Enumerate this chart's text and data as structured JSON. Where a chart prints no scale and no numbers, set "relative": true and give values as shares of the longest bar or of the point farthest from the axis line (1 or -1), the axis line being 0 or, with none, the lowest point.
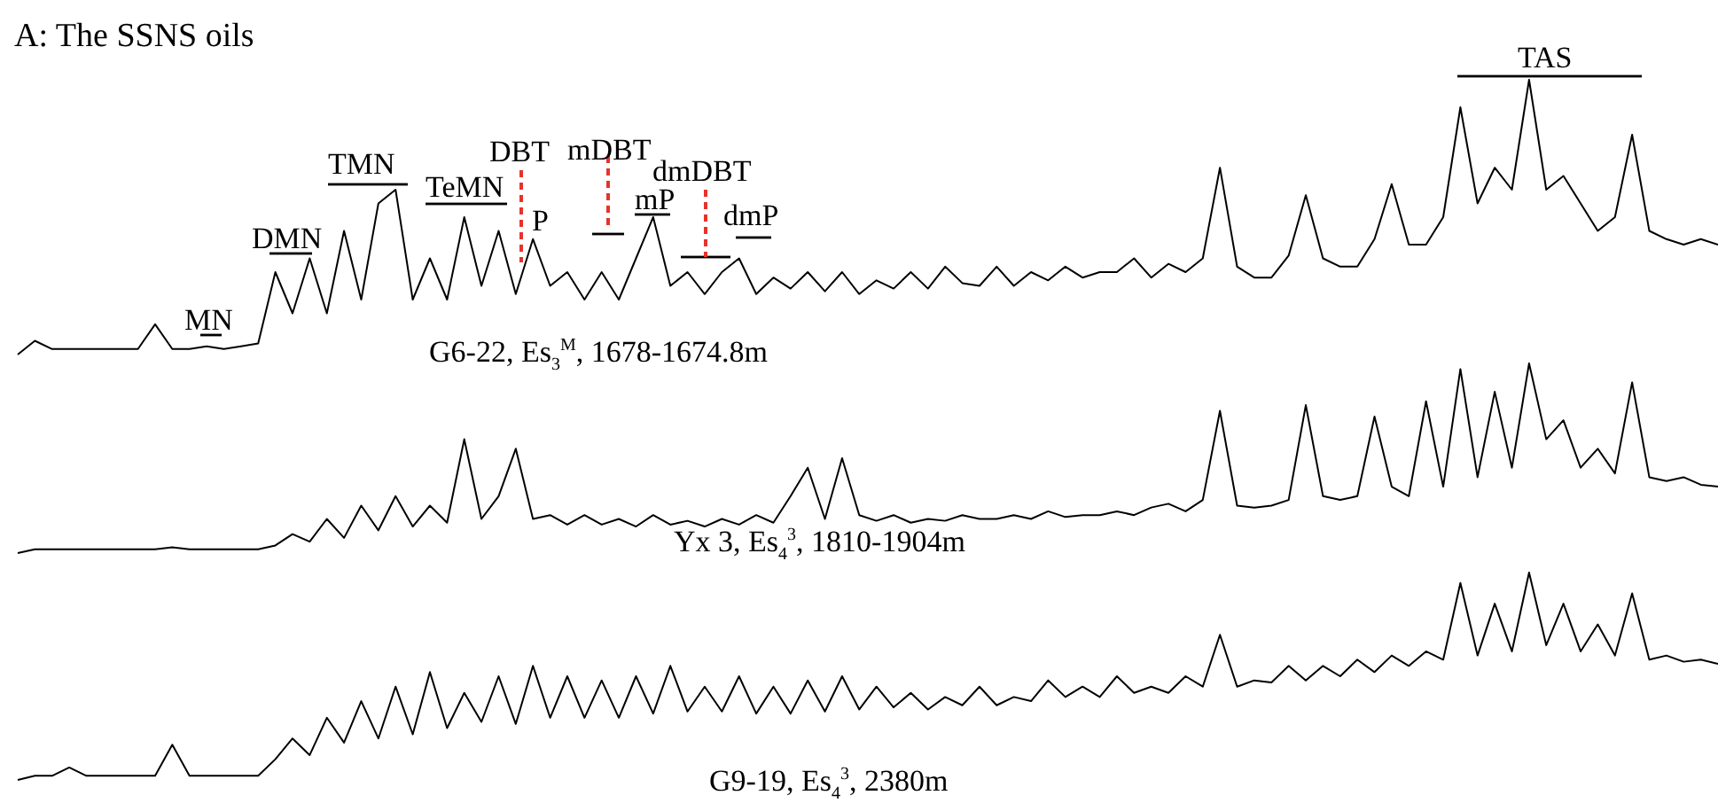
{
  "chart_data": [
    {
      "type": "line",
      "title": "A: The SSNS oils",
      "relative": true,
      "tick_labels": false,
      "marker": "none",
      "line_style": "solid",
      "annotations": [
        "MN",
        "DMN",
        "TMN",
        "TeMN",
        "DBT",
        "P",
        "mDBT",
        "mP",
        "dmDBT",
        "dmP",
        "TAS",
        "G6-22, Es$_{3}$$^{M}$, 1678-1674.8m"
      ],
      "categories": [
        null,
        null,
        null,
        null,
        null,
        null,
        null,
        null,
        null,
        null,
        null,
        null,
        null,
        null,
        null,
        null,
        null,
        null,
        null,
        null,
        null,
        null,
        null,
        null,
        null,
        null,
        null,
        null,
        null,
        null,
        null,
        null,
        null,
        null,
        null,
        null,
        null,
        null,
        null,
        null,
        null,
        null,
        null,
        null,
        null,
        null,
        null,
        null,
        null,
        null,
        null,
        null,
        null,
        null,
        null,
        null,
        null,
        null,
        null,
        null,
        null,
        null,
        null,
        null,
        null,
        null,
        null,
        null,
        null,
        null,
        null,
        null,
        null,
        null,
        null,
        null,
        null,
        null,
        null,
        null,
        null,
        null,
        null,
        null,
        null,
        null,
        null,
        null,
        null,
        null,
        null,
        null,
        null,
        null,
        null,
        null,
        null,
        null,
        null,
        null
      ],
      "series": [
        {
          "color": "#000000",
          "values": [
            0,
            0.05,
            0.02,
            0.02,
            0.02,
            0.02,
            0.02,
            0.02,
            0.11,
            0.02,
            0.02,
            0.03,
            0.02,
            0.03,
            0.04,
            0.3,
            0.15,
            0.35,
            0.15,
            0.45,
            0.2,
            0.55,
            0.6,
            0.2,
            0.35,
            0.2,
            0.5,
            0.25,
            0.45,
            0.22,
            0.42,
            0.25,
            0.3,
            0.2,
            0.3,
            0.2,
            0.35,
            0.5,
            0.25,
            0.3,
            0.22,
            0.3,
            0.35,
            0.22,
            0.28,
            0.24,
            0.3,
            0.23,
            0.3,
            0.22,
            0.27,
            0.24,
            0.3,
            0.24,
            0.32,
            0.26,
            0.25,
            0.32,
            0.25,
            0.3,
            0.27,
            0.32,
            0.28,
            0.3,
            0.3,
            0.35,
            0.28,
            0.33,
            0.3,
            0.35,
            0.68,
            0.32,
            0.28,
            0.28,
            0.36,
            0.58,
            0.35,
            0.32,
            0.32,
            0.42,
            0.62,
            0.4,
            0.4,
            0.5,
            0.9,
            0.55,
            0.68,
            0.6,
            1,
            0.6,
            0.65,
            0.55,
            0.45,
            0.5,
            0.8,
            0.45,
            0.42,
            0.4,
            0.42,
            0.4
          ]
        }
      ]
    },
    {
      "type": "line",
      "relative": true,
      "tick_labels": false,
      "marker": "none",
      "line_style": "solid",
      "annotations": [
        "Yx 3, Es$_{4}$$^{3}$, 1810-1904m"
      ],
      "categories": [
        null,
        null,
        null,
        null,
        null,
        null,
        null,
        null,
        null,
        null,
        null,
        null,
        null,
        null,
        null,
        null,
        null,
        null,
        null,
        null,
        null,
        null,
        null,
        null,
        null,
        null,
        null,
        null,
        null,
        null,
        null,
        null,
        null,
        null,
        null,
        null,
        null,
        null,
        null,
        null,
        null,
        null,
        null,
        null,
        null,
        null,
        null,
        null,
        null,
        null,
        null,
        null,
        null,
        null,
        null,
        null,
        null,
        null,
        null,
        null,
        null,
        null,
        null,
        null,
        null,
        null,
        null,
        null,
        null,
        null,
        null,
        null,
        null,
        null,
        null,
        null,
        null,
        null,
        null,
        null,
        null,
        null,
        null,
        null,
        null,
        null,
        null,
        null,
        null,
        null,
        null,
        null,
        null,
        null,
        null,
        null,
        null,
        null,
        null,
        null
      ],
      "series": [
        {
          "color": "#000000",
          "values": [
            0,
            0.02,
            0.02,
            0.02,
            0.02,
            0.02,
            0.02,
            0.02,
            0.02,
            0.03,
            0.02,
            0.02,
            0.02,
            0.02,
            0.02,
            0.04,
            0.1,
            0.06,
            0.18,
            0.08,
            0.25,
            0.12,
            0.3,
            0.14,
            0.25,
            0.16,
            0.6,
            0.18,
            0.3,
            0.55,
            0.18,
            0.2,
            0.15,
            0.2,
            0.15,
            0.18,
            0.14,
            0.2,
            0.15,
            0.17,
            0.14,
            0.18,
            0.15,
            0.2,
            0.16,
            0.3,
            0.45,
            0.18,
            0.5,
            0.2,
            0.17,
            0.2,
            0.16,
            0.18,
            0.17,
            0.2,
            0.18,
            0.18,
            0.2,
            0.18,
            0.22,
            0.19,
            0.2,
            0.2,
            0.22,
            0.2,
            0.24,
            0.26,
            0.22,
            0.28,
            0.75,
            0.25,
            0.24,
            0.25,
            0.28,
            0.78,
            0.3,
            0.28,
            0.3,
            0.72,
            0.35,
            0.3,
            0.8,
            0.35,
            0.97,
            0.4,
            0.85,
            0.45,
            1,
            0.6,
            0.7,
            0.45,
            0.55,
            0.42,
            0.9,
            0.4,
            0.38,
            0.4,
            0.36,
            0.35
          ]
        }
      ]
    },
    {
      "type": "line",
      "relative": true,
      "tick_labels": false,
      "marker": "none",
      "line_style": "solid",
      "annotations": [
        "G9-19, Es$_{4}$$^{3}$, 2380m"
      ],
      "categories": [
        null,
        null,
        null,
        null,
        null,
        null,
        null,
        null,
        null,
        null,
        null,
        null,
        null,
        null,
        null,
        null,
        null,
        null,
        null,
        null,
        null,
        null,
        null,
        null,
        null,
        null,
        null,
        null,
        null,
        null,
        null,
        null,
        null,
        null,
        null,
        null,
        null,
        null,
        null,
        null,
        null,
        null,
        null,
        null,
        null,
        null,
        null,
        null,
        null,
        null,
        null,
        null,
        null,
        null,
        null,
        null,
        null,
        null,
        null,
        null,
        null,
        null,
        null,
        null,
        null,
        null,
        null,
        null,
        null,
        null,
        null,
        null,
        null,
        null,
        null,
        null,
        null,
        null,
        null,
        null,
        null,
        null,
        null,
        null,
        null,
        null,
        null,
        null,
        null,
        null,
        null,
        null,
        null,
        null,
        null,
        null,
        null,
        null,
        null,
        null
      ],
      "series": [
        {
          "color": "#000000",
          "values": [
            0,
            0.02,
            0.02,
            0.06,
            0.02,
            0.02,
            0.02,
            0.02,
            0.02,
            0.17,
            0.02,
            0.02,
            0.02,
            0.02,
            0.02,
            0.1,
            0.2,
            0.12,
            0.3,
            0.18,
            0.38,
            0.2,
            0.45,
            0.22,
            0.52,
            0.25,
            0.42,
            0.28,
            0.5,
            0.27,
            0.55,
            0.3,
            0.5,
            0.3,
            0.48,
            0.3,
            0.5,
            0.32,
            0.55,
            0.33,
            0.45,
            0.33,
            0.5,
            0.32,
            0.45,
            0.32,
            0.48,
            0.33,
            0.5,
            0.34,
            0.45,
            0.35,
            0.42,
            0.34,
            0.4,
            0.36,
            0.45,
            0.36,
            0.4,
            0.38,
            0.48,
            0.4,
            0.45,
            0.4,
            0.5,
            0.42,
            0.45,
            0.42,
            0.5,
            0.45,
            0.7,
            0.45,
            0.48,
            0.47,
            0.55,
            0.48,
            0.55,
            0.5,
            0.58,
            0.52,
            0.6,
            0.55,
            0.62,
            0.58,
            0.95,
            0.6,
            0.85,
            0.62,
            1,
            0.65,
            0.85,
            0.62,
            0.75,
            0.6,
            0.9,
            0.58,
            0.6,
            0.57,
            0.58,
            0.56
          ]
        }
      ]
    }
  ]
}
